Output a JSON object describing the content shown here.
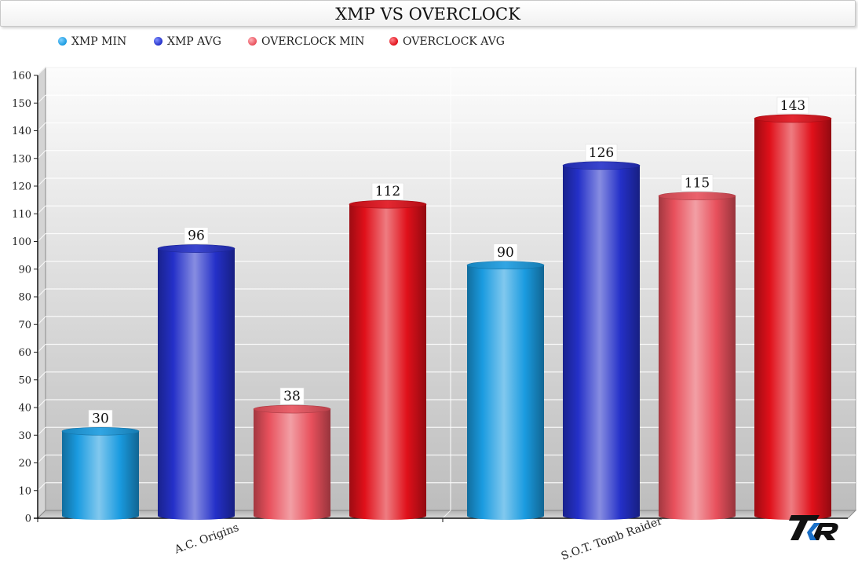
{
  "chart_data": {
    "type": "bar",
    "title": "XMP VS OVERCLOCK",
    "categories": [
      "A.C. Origins",
      "S.O.T. Tomb Raider"
    ],
    "series": [
      {
        "name": "XMP MIN",
        "values": [
          30,
          90
        ],
        "color": "#1a9be0"
      },
      {
        "name": "XMP AVG",
        "values": [
          96,
          126
        ],
        "color": "#2430c8"
      },
      {
        "name": "OVERCLOCK MIN",
        "values": [
          38,
          115
        ],
        "color": "#e8505c"
      },
      {
        "name": "OVERCLOCK AVG",
        "values": [
          112,
          143
        ],
        "color": "#e0101a"
      }
    ],
    "ylim": [
      0,
      160
    ],
    "yticks": [
      0,
      10,
      20,
      30,
      40,
      50,
      60,
      70,
      80,
      90,
      100,
      110,
      120,
      130,
      140,
      150,
      160
    ],
    "xlabel": "",
    "ylabel": "",
    "grid": true,
    "legend_position": "top-left",
    "data_labels": true
  },
  "logo_text": "TKR"
}
